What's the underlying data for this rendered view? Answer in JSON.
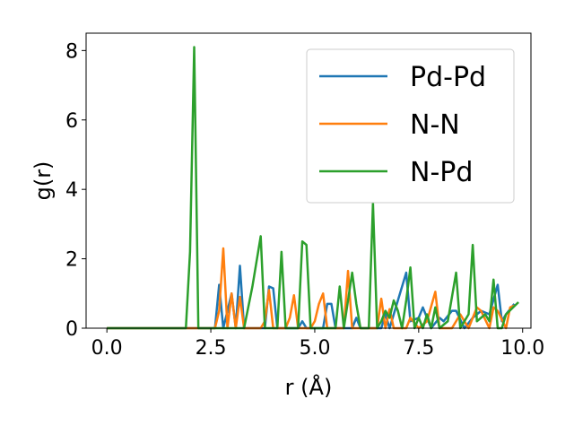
{
  "chart_data": {
    "type": "line",
    "title": "",
    "xlabel": "r (Å)",
    "ylabel": "g(r)",
    "xlim": [
      -0.5,
      10.2
    ],
    "ylim": [
      0,
      8.5
    ],
    "xticks": [
      0.0,
      2.5,
      5.0,
      7.5,
      10.0
    ],
    "xtick_labels": [
      "0.0",
      "2.5",
      "5.0",
      "7.5",
      "10.0"
    ],
    "yticks": [
      0,
      2,
      4,
      6,
      8
    ],
    "ytick_labels": [
      "0",
      "2",
      "4",
      "6",
      "8"
    ],
    "grid": false,
    "legend_position": "upper-right",
    "series": [
      {
        "name": "Pd-Pd",
        "color": "#1f77b4",
        "points": [
          [
            0,
            0
          ],
          [
            2.5,
            0
          ],
          [
            2.6,
            0
          ],
          [
            2.7,
            1.25
          ],
          [
            2.8,
            0
          ],
          [
            2.9,
            0.5
          ],
          [
            3.0,
            1.0
          ],
          [
            3.1,
            0
          ],
          [
            3.2,
            1.8
          ],
          [
            3.3,
            0
          ],
          [
            3.8,
            0
          ],
          [
            3.9,
            1.2
          ],
          [
            4.0,
            1.15
          ],
          [
            4.1,
            0
          ],
          [
            4.6,
            0
          ],
          [
            4.7,
            0.2
          ],
          [
            4.8,
            0
          ],
          [
            5.2,
            0
          ],
          [
            5.3,
            0.7
          ],
          [
            5.4,
            0.7
          ],
          [
            5.5,
            0
          ],
          [
            5.9,
            0
          ],
          [
            6.0,
            0.3
          ],
          [
            6.1,
            0
          ],
          [
            6.6,
            0
          ],
          [
            6.7,
            0.4
          ],
          [
            6.8,
            0
          ],
          [
            7.2,
            1.6
          ],
          [
            7.3,
            0.2
          ],
          [
            7.5,
            0.3
          ],
          [
            7.6,
            0.6
          ],
          [
            7.8,
            0
          ],
          [
            8.0,
            0.3
          ],
          [
            8.1,
            0.2
          ],
          [
            8.3,
            0.5
          ],
          [
            8.4,
            0.5
          ],
          [
            8.6,
            0
          ],
          [
            8.8,
            0.3
          ],
          [
            9.0,
            0.5
          ],
          [
            9.2,
            0.4
          ],
          [
            9.4,
            1.25
          ],
          [
            9.5,
            0.2
          ],
          [
            9.6,
            0.4
          ],
          [
            9.8,
            0.7
          ]
        ]
      },
      {
        "name": "N-N",
        "color": "#ff7f0e",
        "points": [
          [
            0,
            0
          ],
          [
            2.6,
            0
          ],
          [
            2.7,
            0.5
          ],
          [
            2.8,
            2.3
          ],
          [
            2.9,
            0
          ],
          [
            3.0,
            1.0
          ],
          [
            3.1,
            0
          ],
          [
            3.2,
            0.9
          ],
          [
            3.3,
            0
          ],
          [
            3.7,
            0
          ],
          [
            3.8,
            0.2
          ],
          [
            3.9,
            1.1
          ],
          [
            4.0,
            0
          ],
          [
            4.3,
            0
          ],
          [
            4.4,
            0.3
          ],
          [
            4.5,
            0.95
          ],
          [
            4.6,
            0
          ],
          [
            4.9,
            0
          ],
          [
            5.0,
            0.2
          ],
          [
            5.1,
            0.7
          ],
          [
            5.2,
            1.0
          ],
          [
            5.3,
            0
          ],
          [
            5.7,
            0
          ],
          [
            5.8,
            1.65
          ],
          [
            5.9,
            0
          ],
          [
            6.5,
            0
          ],
          [
            6.6,
            0.85
          ],
          [
            6.7,
            0
          ],
          [
            6.8,
            0.55
          ],
          [
            6.9,
            0
          ],
          [
            7.2,
            0
          ],
          [
            7.3,
            0.3
          ],
          [
            7.5,
            0
          ],
          [
            7.7,
            0.2
          ],
          [
            7.9,
            1.05
          ],
          [
            8.0,
            0
          ],
          [
            8.3,
            0
          ],
          [
            8.5,
            0.4
          ],
          [
            8.7,
            0
          ],
          [
            8.9,
            0.6
          ],
          [
            9.0,
            0.5
          ],
          [
            9.2,
            0
          ],
          [
            9.3,
            0.6
          ],
          [
            9.4,
            0.5
          ],
          [
            9.6,
            0
          ],
          [
            9.7,
            0.6
          ],
          [
            9.8,
            0.65
          ]
        ]
      },
      {
        "name": "N-Pd",
        "color": "#2ca02c",
        "points": [
          [
            0,
            0
          ],
          [
            1.9,
            0
          ],
          [
            2.0,
            2.2
          ],
          [
            2.1,
            8.1
          ],
          [
            2.2,
            0
          ],
          [
            3.3,
            0
          ],
          [
            3.5,
            1.2
          ],
          [
            3.7,
            2.65
          ],
          [
            3.8,
            0
          ],
          [
            4.1,
            0
          ],
          [
            4.2,
            2.2
          ],
          [
            4.3,
            0
          ],
          [
            4.6,
            0
          ],
          [
            4.7,
            2.5
          ],
          [
            4.8,
            2.4
          ],
          [
            4.9,
            0
          ],
          [
            5.5,
            0
          ],
          [
            5.6,
            1.2
          ],
          [
            5.7,
            0
          ],
          [
            5.9,
            1.6
          ],
          [
            6.0,
            0.7
          ],
          [
            6.1,
            0
          ],
          [
            6.3,
            0
          ],
          [
            6.4,
            3.6
          ],
          [
            6.5,
            0
          ],
          [
            6.6,
            0.2
          ],
          [
            6.7,
            0.5
          ],
          [
            6.8,
            0.3
          ],
          [
            6.9,
            0.8
          ],
          [
            7.0,
            0.5
          ],
          [
            7.1,
            0
          ],
          [
            7.2,
            0.8
          ],
          [
            7.3,
            1.75
          ],
          [
            7.4,
            0
          ],
          [
            7.5,
            0.3
          ],
          [
            7.6,
            0
          ],
          [
            7.7,
            0.4
          ],
          [
            7.8,
            0
          ],
          [
            7.9,
            0.6
          ],
          [
            8.0,
            0
          ],
          [
            8.2,
            0.2
          ],
          [
            8.4,
            1.6
          ],
          [
            8.5,
            0
          ],
          [
            8.7,
            0.4
          ],
          [
            8.8,
            2.4
          ],
          [
            8.9,
            0.2
          ],
          [
            9.1,
            0.4
          ],
          [
            9.2,
            0.2
          ],
          [
            9.3,
            1.4
          ],
          [
            9.4,
            0
          ],
          [
            9.5,
            0
          ],
          [
            9.6,
            0.4
          ],
          [
            9.9,
            0.75
          ]
        ]
      }
    ]
  }
}
